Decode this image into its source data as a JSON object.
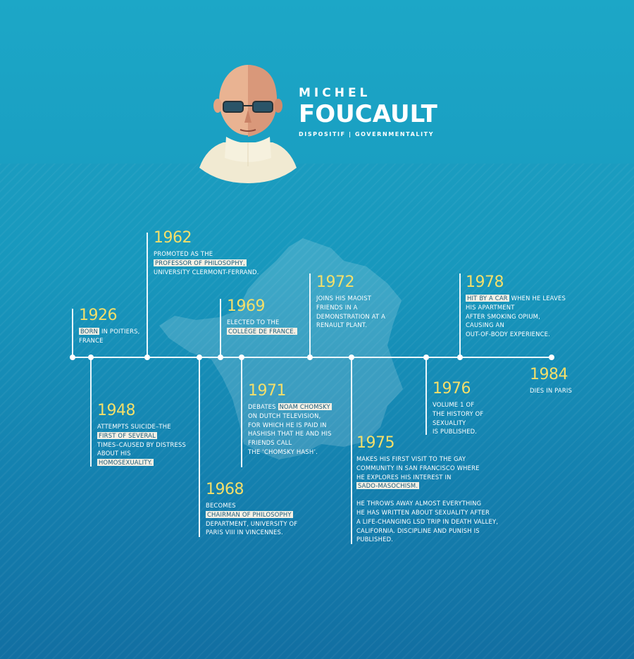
{
  "header": {
    "first_name": "MICHEL",
    "last_name": "FOUCAULT",
    "subtitle": "DISPOSITIF | GOVERNMENTALITY"
  },
  "colors": {
    "background": "#1898bd",
    "year": "#f4df6a",
    "highlight": "#f3efe4",
    "line": "#eaf6fb"
  },
  "events": {
    "e1926": {
      "year": "1926",
      "hl": "BORN",
      "after": " IN POITIERS,",
      "l2": "FRANCE"
    },
    "e1948": {
      "year": "1948",
      "l1": "ATTEMPTS SUICIDE–THE",
      "hl1": "FIRST OF SEVERAL",
      "l3": "TIMES–CAUSED BY DISTRESS",
      "l4": "ABOUT HIS",
      "hl2": "HOMOSEXUALITY."
    },
    "e1962": {
      "year": "1962",
      "l1": "PROMOTED AS THE",
      "hl": "PROFESSOR OF PHILOSOPHY,",
      "l3": "UNIVERSITY CLERMONT-FERRAND."
    },
    "e1968": {
      "year": "1968",
      "l1": "BECOMES",
      "hl": "CHAIRMAN OF PHILOSOPHY",
      "l3": "DEPARTMENT, UNIVERSITY OF",
      "l4": "PARIS VIII IN VINCENNES."
    },
    "e1969": {
      "year": "1969",
      "l1": "ELECTED TO THE",
      "hl": "COLLÈGE DE FRANCE."
    },
    "e1971": {
      "year": "1971",
      "pre": "DEBATES ",
      "hl": "NOAM CHOMSKY",
      "l2": "ON DUTCH TELEVISION,",
      "l3": "FOR WHICH HE IS PAID IN",
      "l4": "HASHISH THAT HE AND HIS",
      "l5": "FRIENDS CALL",
      "l6": "THE ‘CHOMSKY HASH’."
    },
    "e1972": {
      "year": "1972",
      "l1": "JOINS HIS MAOIST",
      "l2": "FRIENDS IN A",
      "l3": "DEMONSTRATION AT A",
      "l4": "RENAULT PLANT."
    },
    "e1975": {
      "year": "1975",
      "l1": "MAKES HIS FIRST VISIT TO THE GAY",
      "l2": "COMMUNITY IN SAN FRANCISCO WHERE",
      "l3": "HE EXPLORES HIS INTEREST IN",
      "hl": "SADO-MASOCHISM.",
      "p2l1": "HE THROWS AWAY ALMOST EVERYTHING",
      "p2l2": "HE HAS WRITTEN ABOUT SEXUALITY AFTER",
      "p2l3": "A LIFE-CHANGING LSD TRIP IN DEATH VALLEY,",
      "p2l4": "CALIFORNIA. DISCIPLINE AND PUNISH IS",
      "p2l5": "PUBLISHED."
    },
    "e1976": {
      "year": "1976",
      "l1": "VOLUME 1 OF",
      "l2": "THE HISTORY OF",
      "l3": "SEXUALITY",
      "l4": "IS PUBLISHED."
    },
    "e1978": {
      "year": "1978",
      "hl": "HIT BY A CAR",
      "after": " WHEN HE LEAVES",
      "l2": "HIS APARTMENT",
      "l3": "AFTER SMOKING OPIUM,",
      "l4": "CAUSING AN",
      "l5": "OUT-OF-BODY EXPERIENCE."
    },
    "e1984": {
      "year": "1984",
      "l1": "DIES IN PARIS"
    }
  }
}
